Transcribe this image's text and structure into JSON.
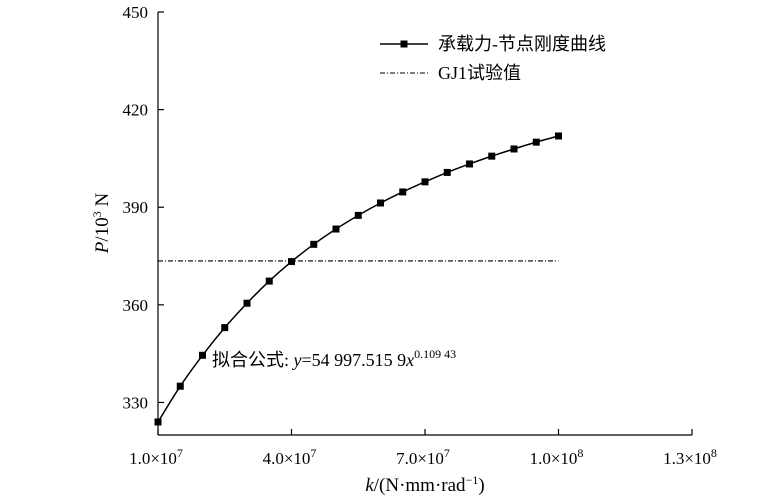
{
  "chart_data": {
    "type": "line",
    "xlabel": {
      "var": "k",
      "unit_open": "/(N·mm·rad",
      "unit_sup": "−1",
      "unit_close": ")"
    },
    "ylabel": {
      "var": "P",
      "unit_pre": "/10",
      "unit_sup": "3",
      "unit_post": " N"
    },
    "xlim": [
      10000000,
      130000000
    ],
    "ylim": [
      320,
      450
    ],
    "x_ticks": [
      10000000,
      40000000,
      70000000,
      100000000,
      130000000
    ],
    "x_tick_labels": [
      {
        "mant": "1.0×10",
        "exp": "7"
      },
      {
        "mant": "4.0×10",
        "exp": "7"
      },
      {
        "mant": "7.0×10",
        "exp": "7"
      },
      {
        "mant": "1.0×10",
        "exp": "8"
      },
      {
        "mant": "1.3×10",
        "exp": "8"
      }
    ],
    "y_ticks": [
      330,
      360,
      390,
      420,
      450
    ],
    "y_tick_labels": [
      "330",
      "360",
      "390",
      "420",
      "450"
    ],
    "grid": false,
    "legend_position": "top-right",
    "series": [
      {
        "name": "承载力-节点刚度曲线",
        "style": "line-square-marker",
        "color": "#000000",
        "x": [
          10000000,
          15000000,
          20000000,
          25000000,
          30000000,
          35000000,
          40000000,
          45000000,
          50000000,
          55000000,
          60000000,
          65000000,
          70000000,
          75000000,
          80000000,
          85000000,
          90000000,
          95000000,
          100000000
        ],
        "y": [
          324.0,
          335.0,
          344.5,
          353.0,
          360.5,
          367.3,
          373.3,
          378.6,
          383.3,
          387.5,
          391.3,
          394.7,
          397.8,
          400.7,
          403.3,
          405.7,
          407.9,
          410.0,
          411.9
        ]
      },
      {
        "name": "GJ1试验值",
        "style": "dash-dot",
        "color": "#000000",
        "x": [
          10000000,
          100000000
        ],
        "y": [
          373.5,
          373.5
        ]
      }
    ],
    "annotation": {
      "prefix": "拟合公式: ",
      "var_y": "y",
      "equals": "=54 997.515 9",
      "var_x": "x",
      "exponent": "0.109 43"
    }
  }
}
